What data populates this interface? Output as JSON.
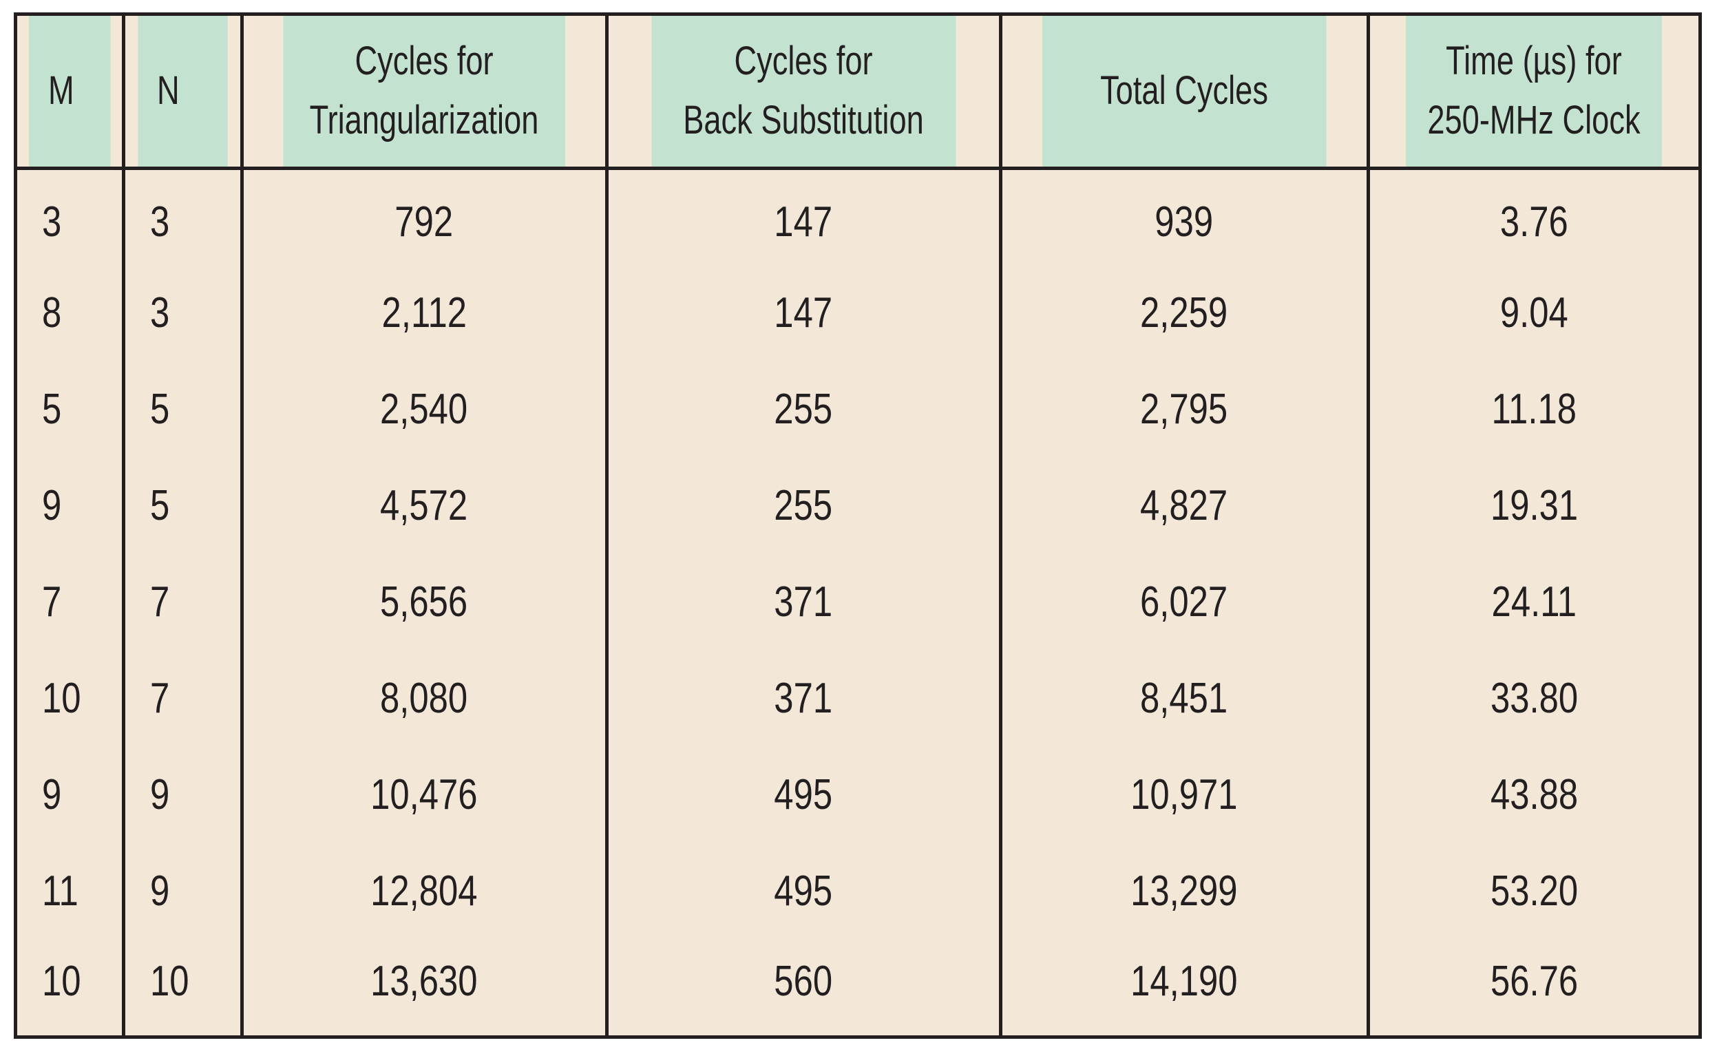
{
  "table": {
    "headers": {
      "m": "M",
      "n": "N",
      "tri": {
        "line1": "Cycles for",
        "line2": "Triangularization"
      },
      "back": {
        "line1": "Cycles for",
        "line2": "Back Substitution"
      },
      "total": "Total Cycles",
      "time": {
        "line1": "Time (µs) for",
        "line2": "250-MHz Clock"
      }
    },
    "rows": [
      {
        "m": "3",
        "n": "3",
        "tri": "792",
        "back": "147",
        "total": "939",
        "time": "3.76"
      },
      {
        "m": "8",
        "n": "3",
        "tri": "2,112",
        "back": "147",
        "total": "2,259",
        "time": "9.04"
      },
      {
        "m": "5",
        "n": "5",
        "tri": "2,540",
        "back": "255",
        "total": "2,795",
        "time": "11.18"
      },
      {
        "m": "9",
        "n": "5",
        "tri": "4,572",
        "back": "255",
        "total": "4,827",
        "time": "19.31"
      },
      {
        "m": "7",
        "n": "7",
        "tri": "5,656",
        "back": "371",
        "total": "6,027",
        "time": "24.11"
      },
      {
        "m": "10",
        "n": "7",
        "tri": "8,080",
        "back": "371",
        "total": "8,451",
        "time": "33.80"
      },
      {
        "m": "9",
        "n": "9",
        "tri": "10,476",
        "back": "495",
        "total": "10,971",
        "time": "43.88"
      },
      {
        "m": "11",
        "n": "9",
        "tri": "12,804",
        "back": "495",
        "total": "13,299",
        "time": "53.20"
      },
      {
        "m": "10",
        "n": "10",
        "tri": "13,630",
        "back": "560",
        "total": "14,190",
        "time": "56.76"
      }
    ]
  },
  "colors": {
    "header_bg": "#c3e2d0",
    "body_bg": "#f3e7d8",
    "rule": "#231f20"
  }
}
